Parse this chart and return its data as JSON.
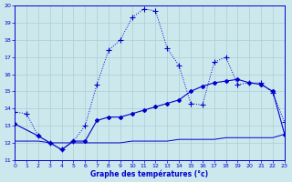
{
  "title": "Graphe des températures (°c)",
  "bg_color": "#cce8ed",
  "grid_color": "#aacdd4",
  "line_color": "#0000cc",
  "xlim": [
    0,
    23
  ],
  "ylim": [
    11,
    20
  ],
  "yticks": [
    11,
    12,
    13,
    14,
    15,
    16,
    17,
    18,
    19,
    20
  ],
  "xticks": [
    0,
    1,
    2,
    3,
    4,
    5,
    6,
    7,
    8,
    9,
    10,
    11,
    12,
    13,
    14,
    15,
    16,
    17,
    18,
    19,
    20,
    21,
    22,
    23
  ],
  "s1_x": [
    0,
    1,
    2,
    3,
    4,
    5,
    6,
    7,
    8,
    9,
    10,
    11,
    12,
    13,
    14,
    15,
    16,
    17,
    18,
    19,
    20,
    21,
    22,
    23
  ],
  "s1_y": [
    13.8,
    13.7,
    12.4,
    12.0,
    11.6,
    12.1,
    13.0,
    15.4,
    17.4,
    18.0,
    19.3,
    19.8,
    19.7,
    17.5,
    16.5,
    14.3,
    14.2,
    16.7,
    17.0,
    15.4,
    15.5,
    15.5,
    14.9,
    13.2
  ],
  "s2_x": [
    0,
    2,
    3,
    4,
    5,
    6,
    7,
    8,
    9,
    10,
    11,
    12,
    13,
    14,
    15,
    16,
    17,
    18,
    19,
    20,
    21,
    22,
    23
  ],
  "s2_y": [
    13.1,
    12.4,
    12.0,
    11.6,
    12.1,
    12.1,
    13.3,
    13.5,
    13.5,
    13.7,
    13.9,
    14.1,
    14.3,
    14.5,
    15.0,
    15.3,
    15.5,
    15.6,
    15.7,
    15.5,
    15.4,
    15.0,
    12.5
  ],
  "s3_x": [
    0,
    2,
    3,
    4,
    5,
    6,
    7,
    8,
    9,
    10,
    11,
    12,
    13,
    14,
    15,
    16,
    17,
    18,
    19,
    20,
    21,
    22,
    23
  ],
  "s3_y": [
    12.1,
    12.1,
    12.0,
    12.0,
    12.0,
    12.0,
    12.0,
    12.0,
    12.0,
    12.1,
    12.1,
    12.1,
    12.1,
    12.2,
    12.2,
    12.2,
    12.2,
    12.3,
    12.3,
    12.3,
    12.3,
    12.3,
    12.5
  ]
}
